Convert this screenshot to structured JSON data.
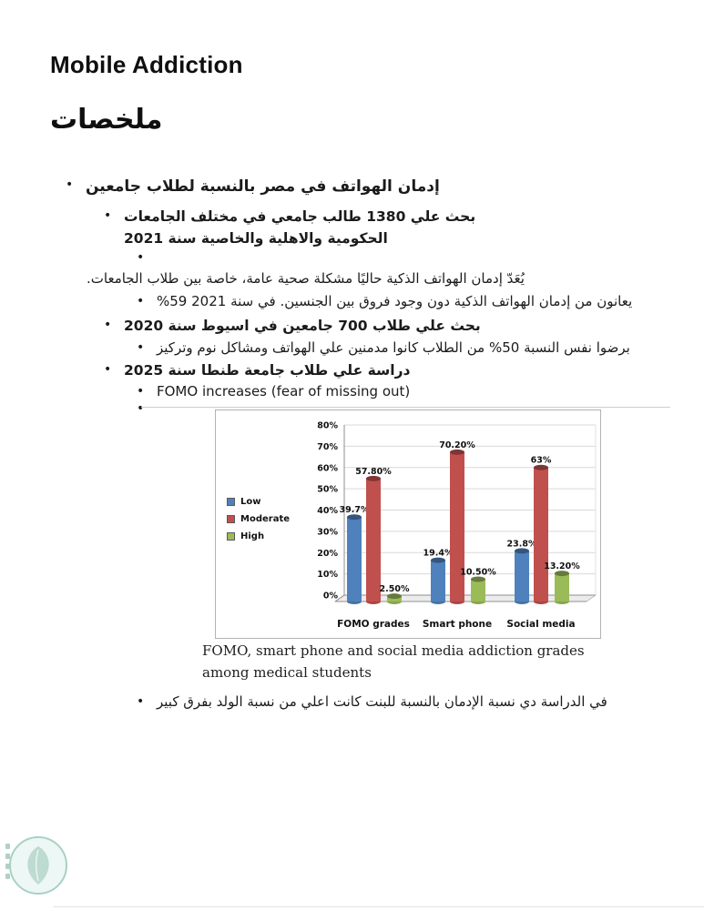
{
  "doc": {
    "title": "Mobile Addiction",
    "heading": "ملخصات"
  },
  "notes": {
    "topic": "إدمان الهواتف في مصر بالنسبة لطلاب جامعين",
    "study_2021": "بحث علي 1380 طالب جامعي في مختلف الجامعات الحكومية والاهلية والخاصية سنة 2021",
    "fact_general": "يُعَدّ إدمان الهواتف الذكية حاليًا مشكلة صحية عامة، خاصة بين طلاب الجامعات.",
    "fact_2021": "يعانون من إدمان الهواتف الذكية دون وجود فروق بين الجنسين. في سنة 2021 59%",
    "study_2020": "بحث علي طلاب 700 جامعين في اسيوط سنة 2020",
    "fact_2020": "برضوا نفس النسبة 50% من الطلاب كانوا مدمنين علي الهواتف ومشاكل نوم وتركيز",
    "study_2025": "دراسة علي طلاب جامعة طنطا سنة 2025",
    "fact_fomo": "FOMO increases (fear of missing out)",
    "conclusion": "في الدراسة دي نسبة الإدمان بالنسبة للبنت كانت اعلي من نسبة الولد بفرق كبير"
  },
  "figure": {
    "caption": "FOMO, smart phone and social media addiction grades among medical students"
  },
  "chart_data": {
    "type": "bar",
    "style": "3d-column",
    "title": "",
    "xlabel": "",
    "ylabel": "",
    "categories": [
      "FOMO grades",
      "Smart phone",
      "Social media"
    ],
    "series": [
      {
        "name": "Low",
        "color": "#4F81BD",
        "values": [
          39.7,
          19.4,
          23.8
        ],
        "labels": [
          "39.7%",
          "19.4%",
          "23.8%"
        ]
      },
      {
        "name": "Moderate",
        "color": "#C0504D",
        "values": [
          57.8,
          70.2,
          63.0
        ],
        "labels": [
          "57.80%",
          "70.20%",
          "63%"
        ]
      },
      {
        "name": "High",
        "color": "#9BBB59",
        "values": [
          2.5,
          10.5,
          13.2
        ],
        "labels": [
          "2.50%",
          "10.50%",
          "13.20%"
        ]
      }
    ],
    "y_ticks": [
      "0%",
      "10%",
      "20%",
      "30%",
      "40%",
      "50%",
      "60%",
      "70%",
      "80%"
    ],
    "ylim": [
      0,
      80
    ],
    "grid": true,
    "legend_position": "left"
  },
  "icons": {
    "watermark": "leaf-logo-watermark"
  }
}
